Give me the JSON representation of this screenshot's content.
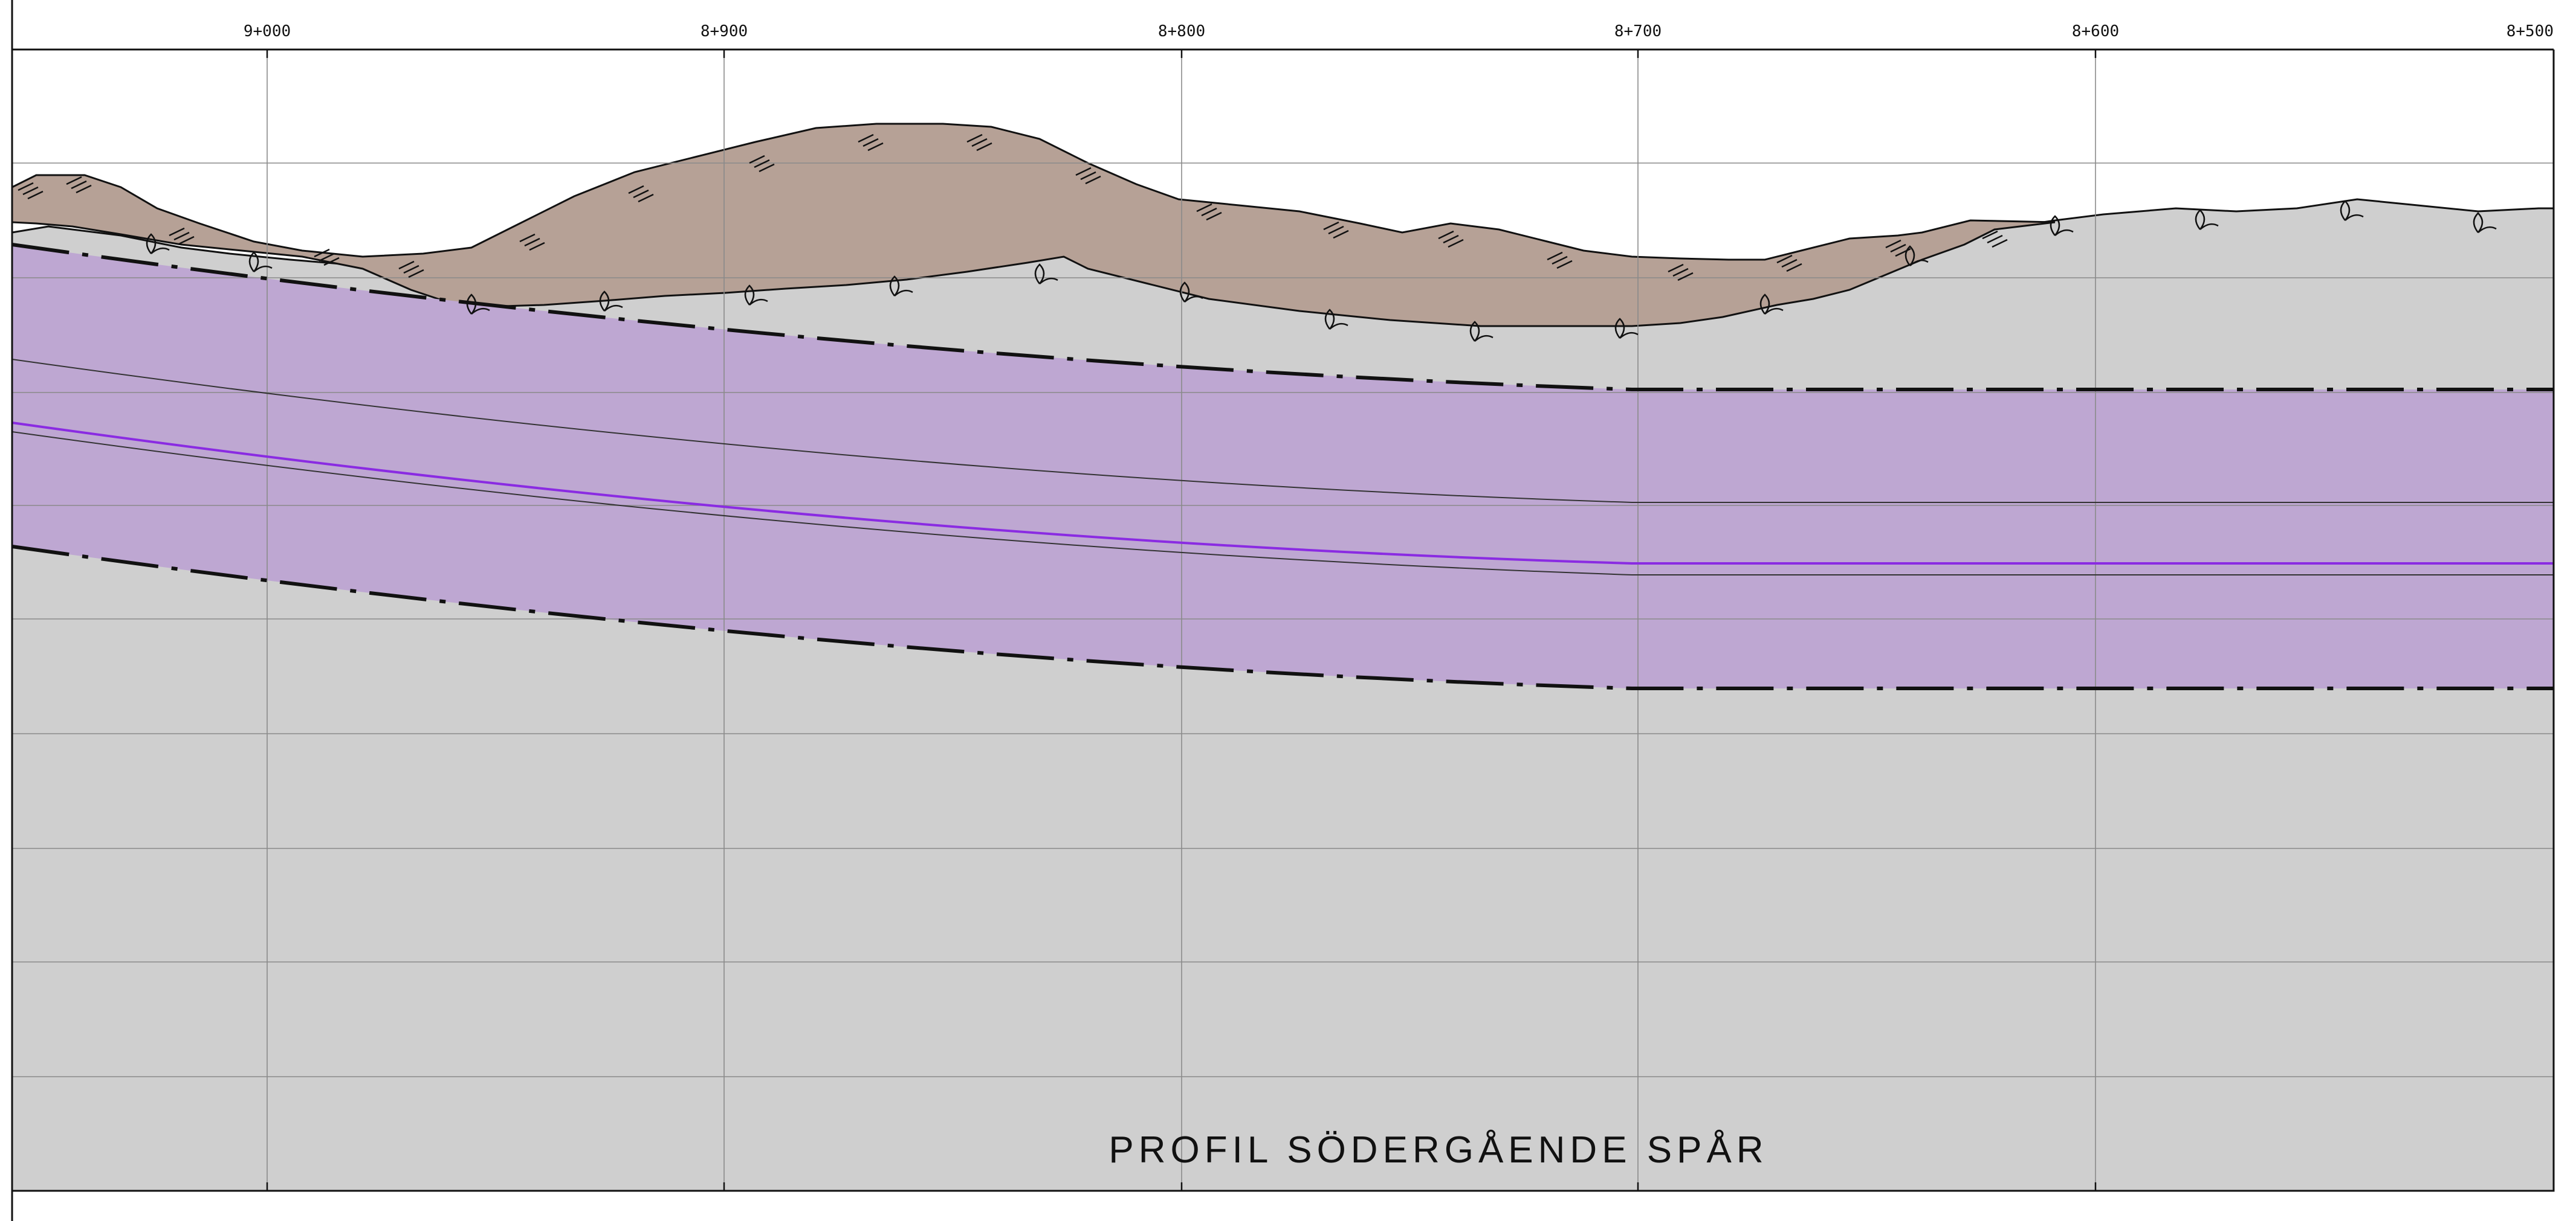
{
  "drawing": {
    "title": "PROFIL SÖDERGÅENDE SPÅR",
    "chainages": [
      "9+000",
      "8+900",
      "8+800",
      "8+700",
      "8+600",
      "8+500"
    ]
  },
  "colors": {
    "background": "#ffffff",
    "bedrock": "#cfcfcf",
    "fill_soil": "#b6a196",
    "tunnel_zone": "#bea7d2",
    "alignment_line": "#8a2be2",
    "grid": "#8a8a8a",
    "line": "#111111"
  },
  "legend_symbols": {
    "fill_soil_hatch": "hatch-icon",
    "moraine_symbol": "leaf-icon"
  }
}
